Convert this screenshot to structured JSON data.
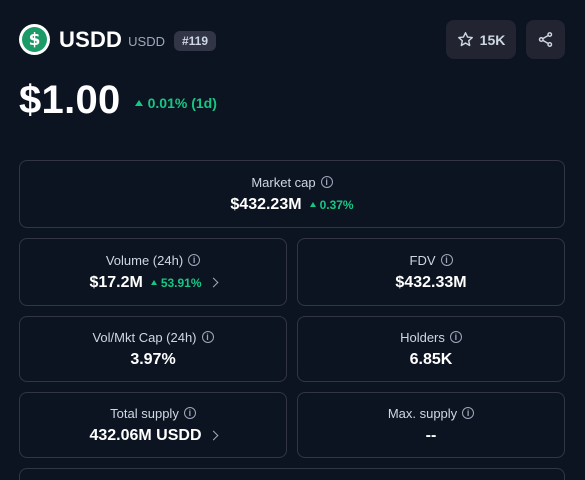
{
  "coin": {
    "name": "USDD",
    "symbol": "USDD",
    "rank": "#119",
    "logo_letter": "$",
    "price": "$1.00",
    "change": "0.01% (1d)"
  },
  "actions": {
    "watchlist_count": "15K",
    "watchlist_icon": "star-icon",
    "share_icon": "share-icon"
  },
  "stats": {
    "market_cap": {
      "label": "Market cap",
      "value": "$432.23M",
      "change": "0.37%"
    },
    "volume": {
      "label": "Volume (24h)",
      "value": "$17.2M",
      "change": "53.91%"
    },
    "fdv": {
      "label": "FDV",
      "value": "$432.33M"
    },
    "vol_mkt": {
      "label": "Vol/Mkt Cap (24h)",
      "value": "3.97%"
    },
    "holders": {
      "label": "Holders",
      "value": "6.85K"
    },
    "total_supply": {
      "label": "Total supply",
      "value": "432.06M USDD"
    },
    "max_supply": {
      "label": "Max. supply",
      "value": "--"
    }
  },
  "colors": {
    "background": "#0d1421",
    "positive": "#16c784",
    "border": "#323546",
    "logo": "#1c9a67"
  }
}
